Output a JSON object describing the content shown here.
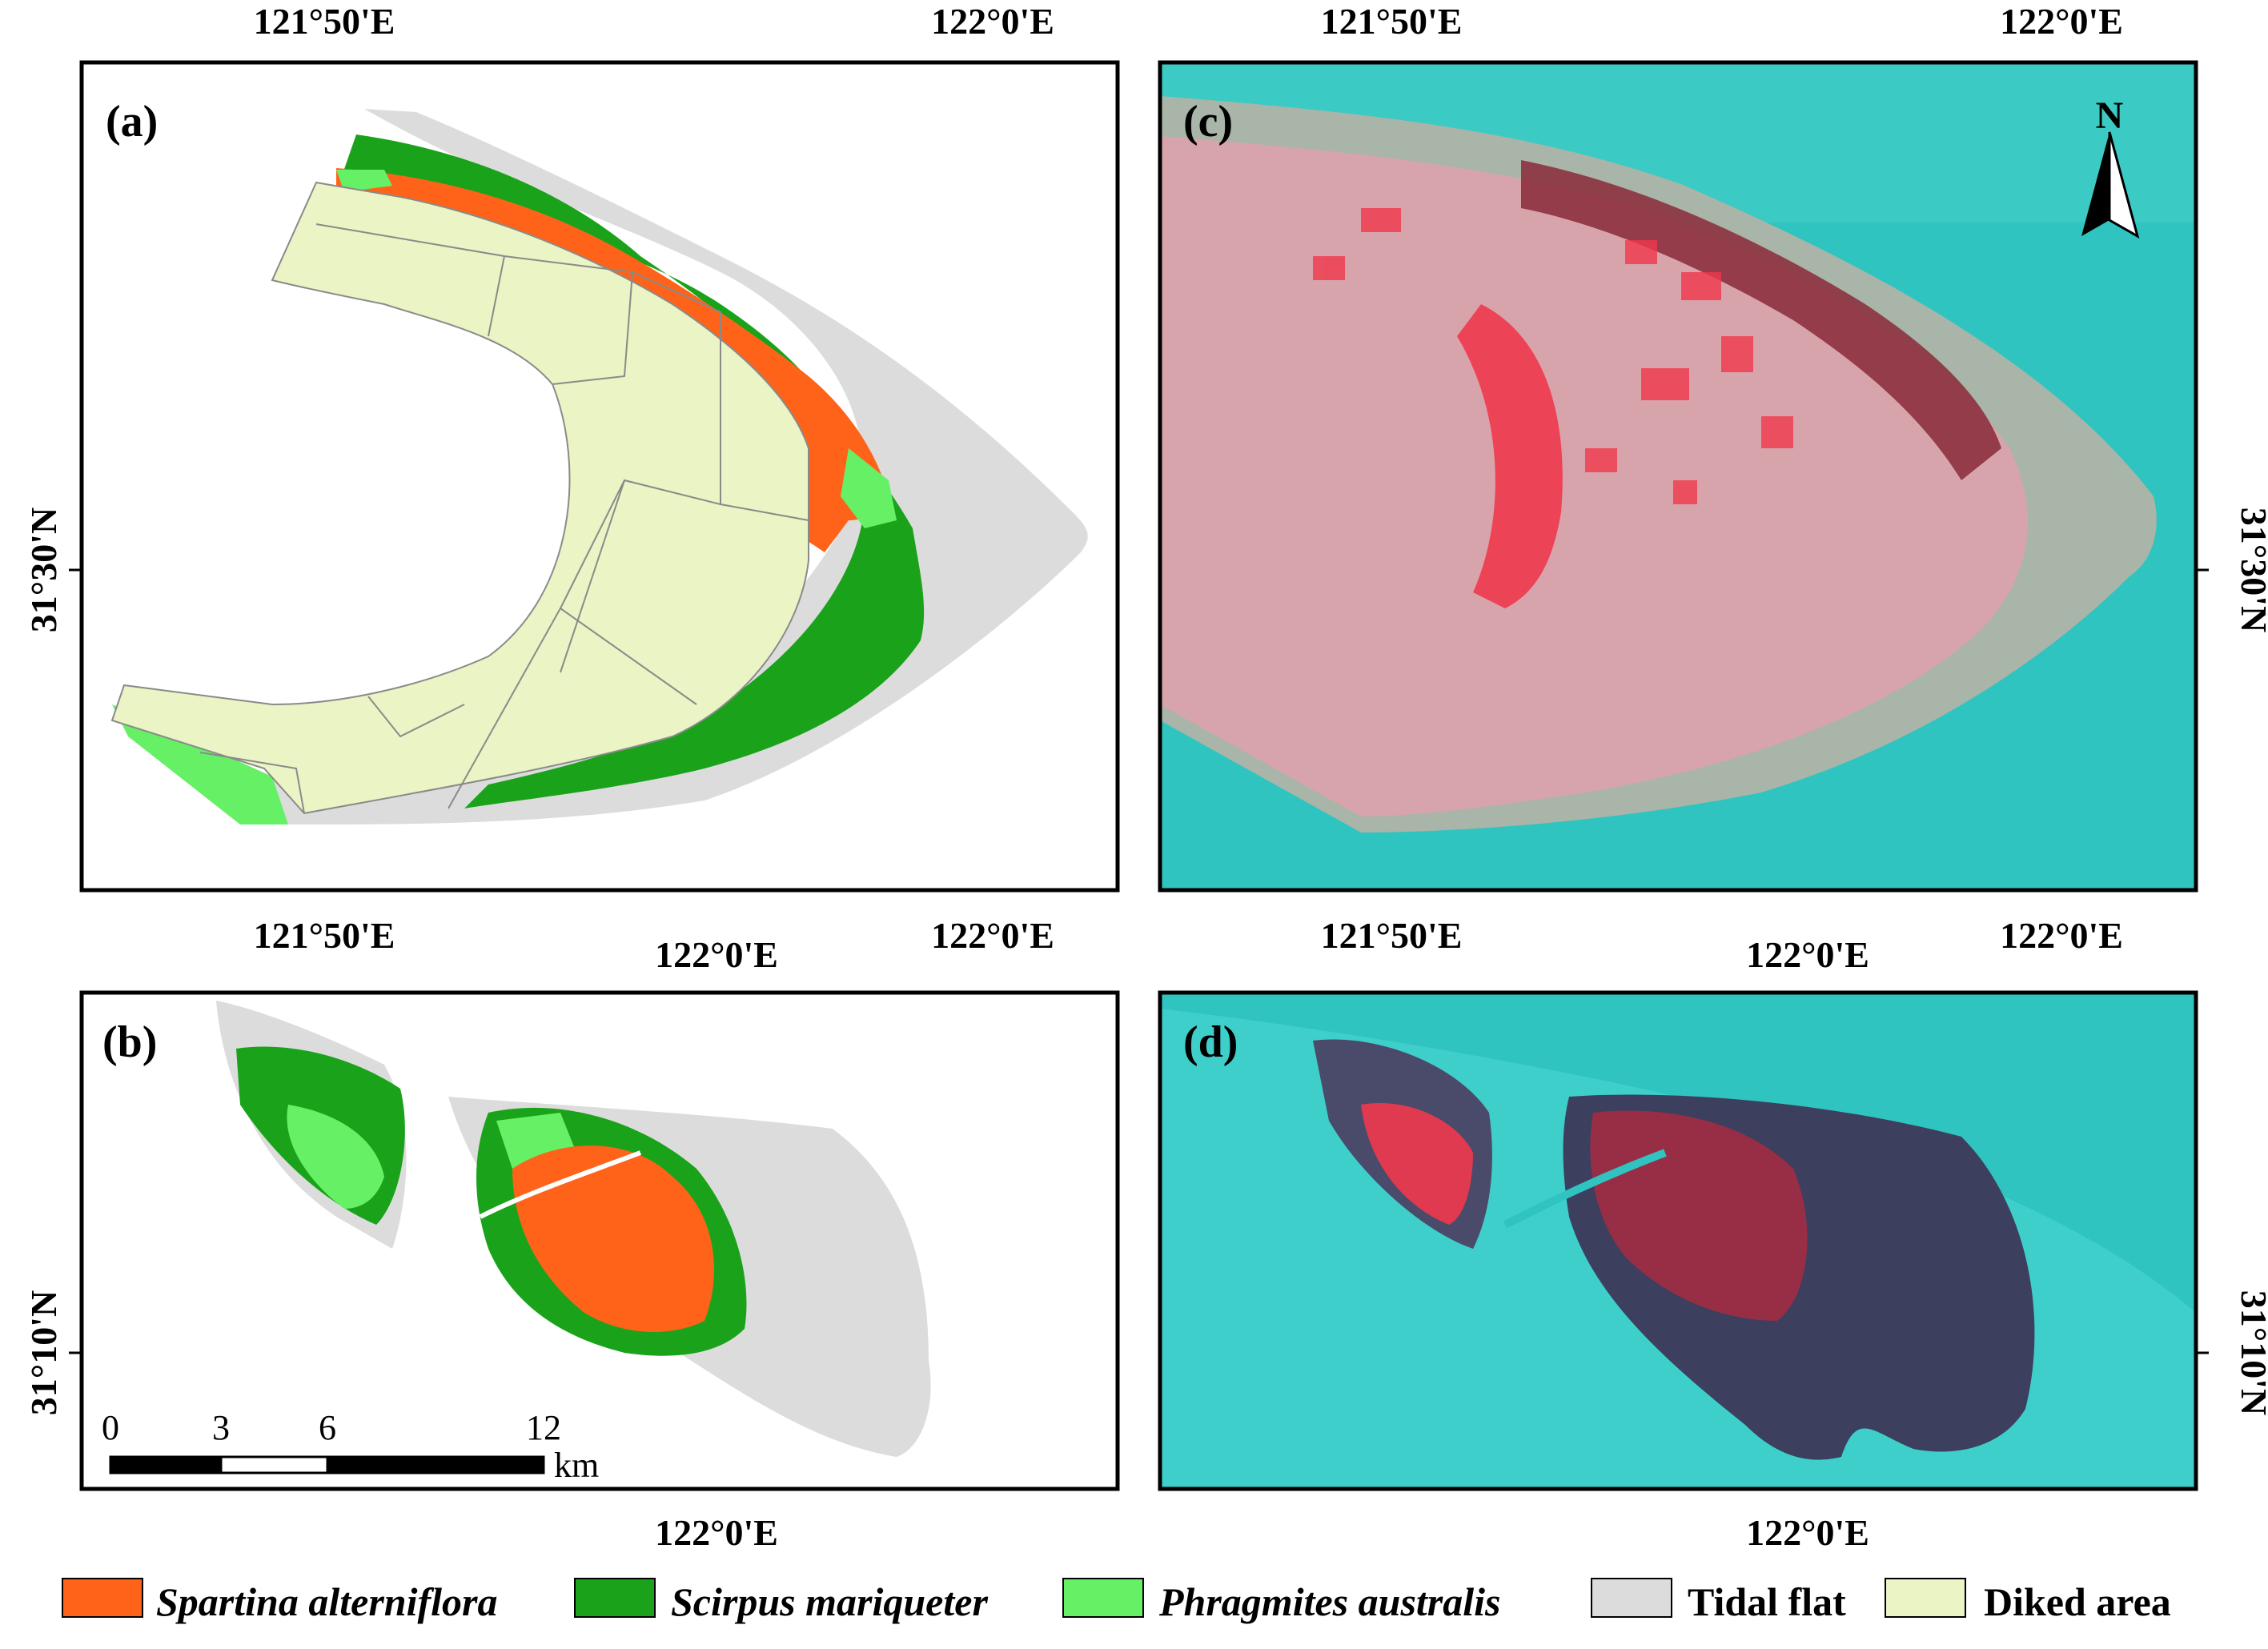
{
  "figure": {
    "panels": {
      "a": {
        "label": "(a)",
        "coord_top": [
          "121°50'E",
          "122°0'E"
        ],
        "coord_bottom": [
          "121°50'E",
          "122°0'E"
        ],
        "coord_left": "31°30'N"
      },
      "c": {
        "label": "(c)",
        "coord_top": [
          "121°50'E",
          "122°0'E"
        ],
        "coord_bottom": [
          "121°50'E",
          "122°0'E"
        ],
        "coord_right": "31°30'N",
        "north_arrow": "N"
      },
      "b": {
        "label": "(b)",
        "coord_top": "122°0'E",
        "coord_bottom": "122°0'E",
        "coord_left": "31°10'N",
        "scale_bar": {
          "ticks": [
            "0",
            "3",
            "6",
            "12"
          ],
          "unit": "km"
        }
      },
      "d": {
        "label": "(d)",
        "coord_top": "122°0'E",
        "coord_bottom": "122°0'E",
        "coord_right": "31°10'N"
      }
    },
    "legend": [
      {
        "label": "Spartina alterniflora",
        "color": "#ff6319",
        "italic": true
      },
      {
        "label": "Scirpus mariqueter",
        "color": "#1aa31a",
        "italic": true
      },
      {
        "label": "Phragmites australis",
        "color": "#66f066",
        "italic": true
      },
      {
        "label": "Tidal flat",
        "color": "#dcdcdc",
        "italic": false
      },
      {
        "label": "Diked area",
        "color": "#eaf4c4",
        "italic": false
      }
    ],
    "colors": {
      "spartina": "#ff6319",
      "scirpus": "#1aa31a",
      "phragmites": "#66f066",
      "tidal_flat": "#dcdcdc",
      "diked": "#eaf4c4",
      "water": "#2fc4c0",
      "urban": "#d8a4ac",
      "veg_red": "#f0384c"
    }
  }
}
